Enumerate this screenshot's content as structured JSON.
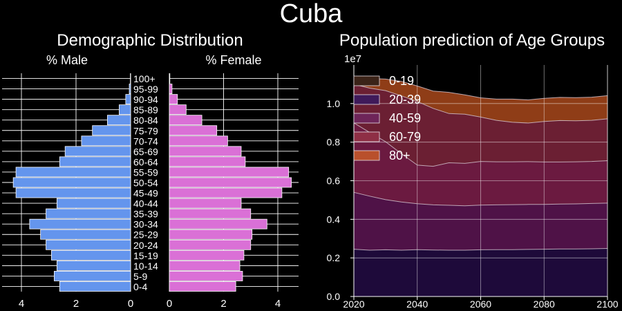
{
  "title": "Cuba",
  "chart_data": [
    {
      "type": "bar",
      "title": "Demographic Distribution",
      "male_label": "% Male",
      "female_label": "% Female",
      "orientation": "horizontal-pyramid",
      "categories": [
        "0-4",
        "5-9",
        "10-14",
        "15-19",
        "20-24",
        "25-29",
        "30-34",
        "35-39",
        "40-44",
        "45-49",
        "50-54",
        "55-59",
        "60-64",
        "65-69",
        "70-74",
        "75-79",
        "80-84",
        "85-89",
        "90-94",
        "95-99",
        "100+"
      ],
      "series": [
        {
          "name": "% Male",
          "color": "#6495ed",
          "values": [
            2.6,
            2.8,
            2.7,
            2.9,
            3.1,
            3.3,
            3.7,
            3.1,
            2.7,
            4.2,
            4.3,
            4.2,
            2.6,
            2.4,
            1.8,
            1.4,
            0.85,
            0.42,
            0.18,
            0.05,
            0.01
          ]
        },
        {
          "name": "% Female",
          "color": "#da70d6",
          "values": [
            2.45,
            2.7,
            2.6,
            2.75,
            3.0,
            3.05,
            3.6,
            3.0,
            2.65,
            4.15,
            4.5,
            4.4,
            2.8,
            2.65,
            2.15,
            1.75,
            1.2,
            0.62,
            0.3,
            0.1,
            0.02
          ]
        }
      ],
      "xlim_male": [
        0,
        4.6
      ],
      "xlim_female": [
        0,
        4.6
      ],
      "xticks": [
        0,
        2,
        4
      ],
      "xtick_labels": [
        "0",
        "2",
        "4"
      ],
      "grid": true
    },
    {
      "type": "area",
      "stacked": true,
      "title": "Population prediction of Age Groups",
      "ylabel_offset": "1e7",
      "x": [
        2020,
        2025,
        2030,
        2035,
        2040,
        2045,
        2050,
        2055,
        2060,
        2065,
        2070,
        2075,
        2080,
        2085,
        2090,
        2095,
        2100
      ],
      "series": [
        {
          "name": "0-19",
          "color": "#1e0a3a",
          "values": [
            0.245,
            0.24,
            0.242,
            0.24,
            0.243,
            0.241,
            0.24,
            0.24,
            0.242,
            0.243,
            0.243,
            0.244,
            0.245,
            0.246,
            0.246,
            0.247,
            0.249
          ]
        },
        {
          "name": "20-39",
          "color": "#4f1247",
          "values": [
            0.295,
            0.28,
            0.26,
            0.25,
            0.238,
            0.234,
            0.233,
            0.23,
            0.232,
            0.232,
            0.233,
            0.233,
            0.232,
            0.233,
            0.234,
            0.235,
            0.235
          ]
        },
        {
          "name": "40-59",
          "color": "#6b1a40",
          "values": [
            0.36,
            0.33,
            0.3,
            0.25,
            0.2,
            0.2,
            0.22,
            0.22,
            0.226,
            0.223,
            0.222,
            0.222,
            0.22,
            0.218,
            0.218,
            0.218,
            0.22
          ]
        },
        {
          "name": "60-79",
          "color": "#6b1f33",
          "values": [
            0.2,
            0.23,
            0.265,
            0.3,
            0.33,
            0.3,
            0.255,
            0.255,
            0.23,
            0.215,
            0.205,
            0.2,
            0.21,
            0.215,
            0.213,
            0.213,
            0.217
          ]
        },
        {
          "name": "80+",
          "color": "#8f3d17",
          "values": [
            0.04,
            0.05,
            0.06,
            0.075,
            0.08,
            0.09,
            0.11,
            0.1,
            0.1,
            0.11,
            0.12,
            0.12,
            0.12,
            0.12,
            0.12,
            0.12,
            0.12
          ]
        }
      ],
      "xlim": [
        2020,
        2100
      ],
      "ylim": [
        0,
        1.2
      ],
      "xticks": [
        2020,
        2040,
        2060,
        2080,
        2100
      ],
      "yticks": [
        0.0,
        0.2,
        0.4,
        0.6,
        0.8,
        1.0
      ],
      "ytick_labels": [
        "0.0",
        "0.2",
        "0.4",
        "0.6",
        "0.8",
        "1.0"
      ],
      "legend": "top-left",
      "grid": true
    }
  ]
}
